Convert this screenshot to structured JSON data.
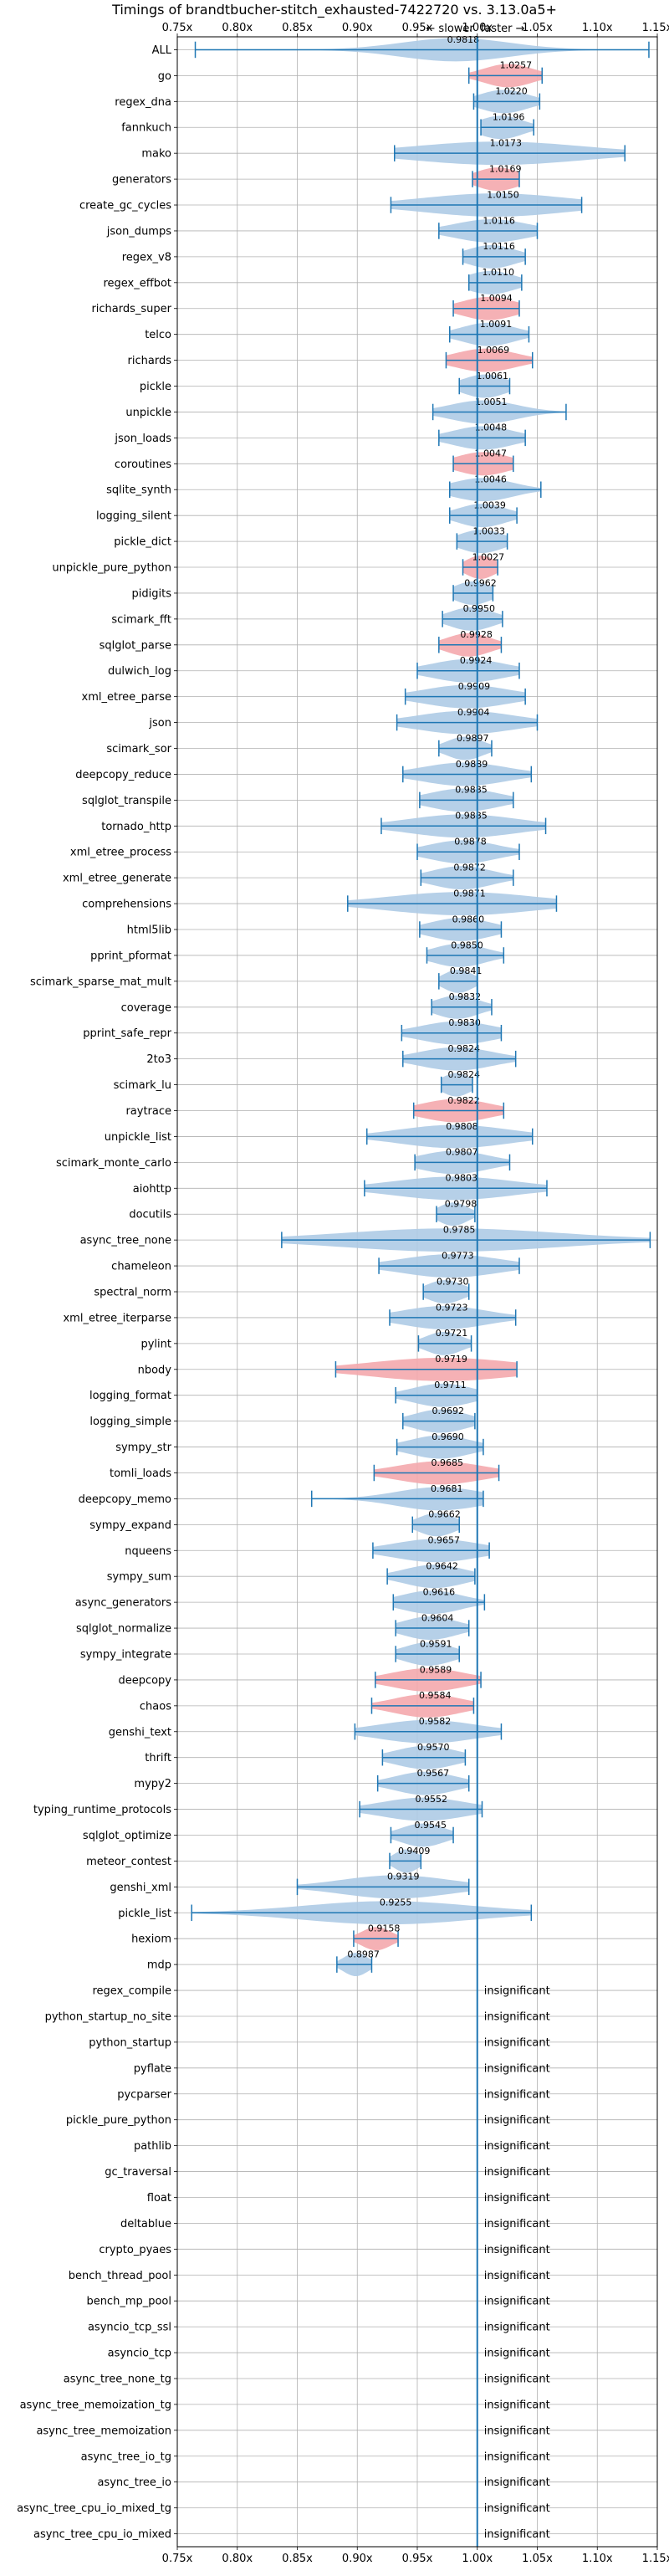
{
  "chart_data": {
    "type": "violin",
    "title": "Timings of brandtbucher-stitch_exhausted-7422720 vs. 3.13.0a5+",
    "direction_labels": {
      "slower": "← slower",
      "faster": "faster →"
    },
    "xlim": [
      0.75,
      1.15
    ],
    "xticks": [
      "0.75x",
      "0.80x",
      "0.85x",
      "0.90x",
      "0.95x",
      "1.00x",
      "1.05x",
      "1.10x",
      "1.15x"
    ],
    "reference_line": 1.0,
    "grid": true,
    "colors": {
      "normal": "#aecbe6",
      "highlight": "#f4a8ad",
      "line": "#1f77b4"
    },
    "insignificant_text": "insignificant",
    "benchmarks": [
      {
        "name": "ALL",
        "mean": "0.9818",
        "v": 0.9818,
        "lo": 0.765,
        "hi": 1.143,
        "w": 0.045,
        "hl": false
      },
      {
        "name": "go",
        "mean": "1.0257",
        "v": 1.0257,
        "lo": 0.993,
        "hi": 1.054,
        "w": 0.02,
        "hl": true
      },
      {
        "name": "regex_dna",
        "mean": "1.0220",
        "v": 1.022,
        "lo": 0.997,
        "hi": 1.052,
        "w": 0.02,
        "hl": false
      },
      {
        "name": "fannkuch",
        "mean": "1.0196",
        "v": 1.0196,
        "lo": 1.003,
        "hi": 1.047,
        "w": 0.018,
        "hl": false
      },
      {
        "name": "mako",
        "mean": "1.0173",
        "v": 1.0173,
        "lo": 0.931,
        "hi": 1.123,
        "w": 0.07,
        "hl": false
      },
      {
        "name": "generators",
        "mean": "1.0169",
        "v": 1.0169,
        "lo": 0.996,
        "hi": 1.035,
        "w": 0.018,
        "hl": true
      },
      {
        "name": "create_gc_cycles",
        "mean": "1.0150",
        "v": 1.015,
        "lo": 0.928,
        "hi": 1.087,
        "w": 0.06,
        "hl": false
      },
      {
        "name": "json_dumps",
        "mean": "1.0116",
        "v": 1.0116,
        "lo": 0.968,
        "hi": 1.05,
        "w": 0.03,
        "hl": false
      },
      {
        "name": "regex_v8",
        "mean": "1.0116",
        "v": 1.0116,
        "lo": 0.988,
        "hi": 1.04,
        "w": 0.02,
        "hl": false
      },
      {
        "name": "regex_effbot",
        "mean": "1.0110",
        "v": 1.011,
        "lo": 0.993,
        "hi": 1.037,
        "w": 0.02,
        "hl": false
      },
      {
        "name": "richards_super",
        "mean": "1.0094",
        "v": 1.0094,
        "lo": 0.98,
        "hi": 1.035,
        "w": 0.022,
        "hl": true
      },
      {
        "name": "telco",
        "mean": "1.0091",
        "v": 1.0091,
        "lo": 0.977,
        "hi": 1.043,
        "w": 0.022,
        "hl": false
      },
      {
        "name": "richards",
        "mean": "1.0069",
        "v": 1.0069,
        "lo": 0.974,
        "hi": 1.046,
        "w": 0.025,
        "hl": true
      },
      {
        "name": "pickle",
        "mean": "1.0061",
        "v": 1.0061,
        "lo": 0.985,
        "hi": 1.027,
        "w": 0.018,
        "hl": false
      },
      {
        "name": "unpickle",
        "mean": "1.0051",
        "v": 1.0051,
        "lo": 0.963,
        "hi": 1.074,
        "w": 0.028,
        "hl": false
      },
      {
        "name": "json_loads",
        "mean": "1.0048",
        "v": 1.0048,
        "lo": 0.968,
        "hi": 1.04,
        "w": 0.025,
        "hl": false
      },
      {
        "name": "coroutines",
        "mean": "1.0047",
        "v": 1.0047,
        "lo": 0.98,
        "hi": 1.03,
        "w": 0.022,
        "hl": true
      },
      {
        "name": "sqlite_synth",
        "mean": "1.0046",
        "v": 1.0046,
        "lo": 0.977,
        "hi": 1.053,
        "w": 0.025,
        "hl": false
      },
      {
        "name": "logging_silent",
        "mean": "1.0039",
        "v": 1.0039,
        "lo": 0.977,
        "hi": 1.033,
        "w": 0.02,
        "hl": false
      },
      {
        "name": "pickle_dict",
        "mean": "1.0033",
        "v": 1.0033,
        "lo": 0.983,
        "hi": 1.025,
        "w": 0.018,
        "hl": false
      },
      {
        "name": "unpickle_pure_python",
        "mean": "1.0027",
        "v": 1.0027,
        "lo": 0.988,
        "hi": 1.017,
        "w": 0.012,
        "hl": true
      },
      {
        "name": "pidigits",
        "mean": "0.9962",
        "v": 0.9962,
        "lo": 0.98,
        "hi": 1.013,
        "w": 0.015,
        "hl": false
      },
      {
        "name": "scimark_fft",
        "mean": "0.9950",
        "v": 0.995,
        "lo": 0.971,
        "hi": 1.021,
        "w": 0.018,
        "hl": false
      },
      {
        "name": "sqlglot_parse",
        "mean": "0.9928",
        "v": 0.9928,
        "lo": 0.968,
        "hi": 1.02,
        "w": 0.018,
        "hl": true
      },
      {
        "name": "dulwich_log",
        "mean": "0.9924",
        "v": 0.9924,
        "lo": 0.95,
        "hi": 1.035,
        "w": 0.03,
        "hl": false
      },
      {
        "name": "xml_etree_parse",
        "mean": "0.9909",
        "v": 0.9909,
        "lo": 0.94,
        "hi": 1.04,
        "w": 0.035,
        "hl": false
      },
      {
        "name": "json",
        "mean": "0.9904",
        "v": 0.9904,
        "lo": 0.933,
        "hi": 1.05,
        "w": 0.04,
        "hl": false
      },
      {
        "name": "scimark_sor",
        "mean": "0.9897",
        "v": 0.9897,
        "lo": 0.968,
        "hi": 1.012,
        "w": 0.015,
        "hl": false
      },
      {
        "name": "deepcopy_reduce",
        "mean": "0.9889",
        "v": 0.9889,
        "lo": 0.938,
        "hi": 1.045,
        "w": 0.035,
        "hl": false
      },
      {
        "name": "sqlglot_transpile",
        "mean": "0.9885",
        "v": 0.9885,
        "lo": 0.952,
        "hi": 1.03,
        "w": 0.028,
        "hl": false
      },
      {
        "name": "tornado_http",
        "mean": "0.9885",
        "v": 0.9885,
        "lo": 0.92,
        "hi": 1.057,
        "w": 0.045,
        "hl": false
      },
      {
        "name": "xml_etree_process",
        "mean": "0.9878",
        "v": 0.9878,
        "lo": 0.95,
        "hi": 1.035,
        "w": 0.028,
        "hl": false
      },
      {
        "name": "xml_etree_generate",
        "mean": "0.9872",
        "v": 0.9872,
        "lo": 0.953,
        "hi": 1.03,
        "w": 0.025,
        "hl": false
      },
      {
        "name": "comprehensions",
        "mean": "0.9871",
        "v": 0.9871,
        "lo": 0.892,
        "hi": 1.066,
        "w": 0.06,
        "hl": false
      },
      {
        "name": "html5lib",
        "mean": "0.9860",
        "v": 0.986,
        "lo": 0.952,
        "hi": 1.02,
        "w": 0.025,
        "hl": false
      },
      {
        "name": "pprint_pformat",
        "mean": "0.9850",
        "v": 0.985,
        "lo": 0.958,
        "hi": 1.022,
        "w": 0.022,
        "hl": false
      },
      {
        "name": "scimark_sparse_mat_mult",
        "mean": "0.9841",
        "v": 0.9841,
        "lo": 0.968,
        "hi": 1.0,
        "w": 0.012,
        "hl": false
      },
      {
        "name": "coverage",
        "mean": "0.9832",
        "v": 0.9832,
        "lo": 0.962,
        "hi": 1.012,
        "w": 0.018,
        "hl": false
      },
      {
        "name": "pprint_safe_repr",
        "mean": "0.9830",
        "v": 0.983,
        "lo": 0.937,
        "hi": 1.02,
        "w": 0.03,
        "hl": false
      },
      {
        "name": "2to3",
        "mean": "0.9824",
        "v": 0.9824,
        "lo": 0.938,
        "hi": 1.032,
        "w": 0.03,
        "hl": false
      },
      {
        "name": "scimark_lu",
        "mean": "0.9824",
        "v": 0.9824,
        "lo": 0.97,
        "hi": 0.996,
        "w": 0.012,
        "hl": false
      },
      {
        "name": "raytrace",
        "mean": "0.9822",
        "v": 0.9822,
        "lo": 0.947,
        "hi": 1.022,
        "w": 0.028,
        "hl": true
      },
      {
        "name": "unpickle_list",
        "mean": "0.9808",
        "v": 0.9808,
        "lo": 0.908,
        "hi": 1.046,
        "w": 0.045,
        "hl": false
      },
      {
        "name": "scimark_monte_carlo",
        "mean": "0.9807",
        "v": 0.9807,
        "lo": 0.948,
        "hi": 1.027,
        "w": 0.028,
        "hl": false
      },
      {
        "name": "aiohttp",
        "mean": "0.9803",
        "v": 0.9803,
        "lo": 0.906,
        "hi": 1.058,
        "w": 0.05,
        "hl": false
      },
      {
        "name": "docutils",
        "mean": "0.9798",
        "v": 0.9798,
        "lo": 0.966,
        "hi": 0.998,
        "w": 0.012,
        "hl": false
      },
      {
        "name": "async_tree_none",
        "mean": "0.9785",
        "v": 0.9785,
        "lo": 0.837,
        "hi": 1.144,
        "w": 0.09,
        "hl": false
      },
      {
        "name": "chameleon",
        "mean": "0.9773",
        "v": 0.9773,
        "lo": 0.918,
        "hi": 1.035,
        "w": 0.04,
        "hl": false
      },
      {
        "name": "spectral_norm",
        "mean": "0.9730",
        "v": 0.973,
        "lo": 0.955,
        "hi": 0.993,
        "w": 0.015,
        "hl": false
      },
      {
        "name": "xml_etree_iterparse",
        "mean": "0.9723",
        "v": 0.9723,
        "lo": 0.927,
        "hi": 1.032,
        "w": 0.035,
        "hl": false
      },
      {
        "name": "pylint",
        "mean": "0.9721",
        "v": 0.9721,
        "lo": 0.951,
        "hi": 0.995,
        "w": 0.015,
        "hl": false
      },
      {
        "name": "nbody",
        "mean": "0.9719",
        "v": 0.9719,
        "lo": 0.882,
        "hi": 1.033,
        "w": 0.06,
        "hl": true
      },
      {
        "name": "logging_format",
        "mean": "0.9711",
        "v": 0.9711,
        "lo": 0.932,
        "hi": 1.0,
        "w": 0.025,
        "hl": false
      },
      {
        "name": "logging_simple",
        "mean": "0.9692",
        "v": 0.9692,
        "lo": 0.938,
        "hi": 0.998,
        "w": 0.022,
        "hl": false
      },
      {
        "name": "sympy_str",
        "mean": "0.9690",
        "v": 0.969,
        "lo": 0.933,
        "hi": 1.005,
        "w": 0.025,
        "hl": false
      },
      {
        "name": "tomli_loads",
        "mean": "0.9685",
        "v": 0.9685,
        "lo": 0.914,
        "hi": 1.018,
        "w": 0.035,
        "hl": true
      },
      {
        "name": "deepcopy_memo",
        "mean": "0.9681",
        "v": 0.9681,
        "lo": 0.862,
        "hi": 1.005,
        "w": 0.035,
        "hl": false
      },
      {
        "name": "sympy_expand",
        "mean": "0.9662",
        "v": 0.9662,
        "lo": 0.946,
        "hi": 0.985,
        "w": 0.015,
        "hl": false
      },
      {
        "name": "nqueens",
        "mean": "0.9657",
        "v": 0.9657,
        "lo": 0.913,
        "hi": 1.01,
        "w": 0.035,
        "hl": false
      },
      {
        "name": "sympy_sum",
        "mean": "0.9642",
        "v": 0.9642,
        "lo": 0.925,
        "hi": 0.998,
        "w": 0.025,
        "hl": false
      },
      {
        "name": "async_generators",
        "mean": "0.9616",
        "v": 0.9616,
        "lo": 0.93,
        "hi": 1.006,
        "w": 0.025,
        "hl": false
      },
      {
        "name": "sqlglot_normalize",
        "mean": "0.9604",
        "v": 0.9604,
        "lo": 0.932,
        "hi": 0.993,
        "w": 0.022,
        "hl": false
      },
      {
        "name": "sympy_integrate",
        "mean": "0.9591",
        "v": 0.9591,
        "lo": 0.932,
        "hi": 0.985,
        "w": 0.02,
        "hl": false
      },
      {
        "name": "deepcopy",
        "mean": "0.9589",
        "v": 0.9589,
        "lo": 0.915,
        "hi": 1.003,
        "w": 0.03,
        "hl": true
      },
      {
        "name": "chaos",
        "mean": "0.9584",
        "v": 0.9584,
        "lo": 0.912,
        "hi": 0.997,
        "w": 0.028,
        "hl": true
      },
      {
        "name": "genshi_text",
        "mean": "0.9582",
        "v": 0.9582,
        "lo": 0.898,
        "hi": 1.02,
        "w": 0.04,
        "hl": false
      },
      {
        "name": "thrift",
        "mean": "0.9570",
        "v": 0.957,
        "lo": 0.921,
        "hi": 0.99,
        "w": 0.025,
        "hl": false
      },
      {
        "name": "mypy2",
        "mean": "0.9567",
        "v": 0.9567,
        "lo": 0.917,
        "hi": 0.993,
        "w": 0.025,
        "hl": false
      },
      {
        "name": "typing_runtime_protocols",
        "mean": "0.9552",
        "v": 0.9552,
        "lo": 0.902,
        "hi": 1.004,
        "w": 0.035,
        "hl": false
      },
      {
        "name": "sqlglot_optimize",
        "mean": "0.9545",
        "v": 0.9545,
        "lo": 0.928,
        "hi": 0.98,
        "w": 0.018,
        "hl": false
      },
      {
        "name": "meteor_contest",
        "mean": "0.9409",
        "v": 0.9409,
        "lo": 0.927,
        "hi": 0.953,
        "w": 0.01,
        "hl": false
      },
      {
        "name": "genshi_xml",
        "mean": "0.9319",
        "v": 0.9319,
        "lo": 0.85,
        "hi": 0.993,
        "w": 0.045,
        "hl": false
      },
      {
        "name": "pickle_list",
        "mean": "0.9255",
        "v": 0.9255,
        "lo": 0.762,
        "hi": 1.045,
        "w": 0.07,
        "hl": false
      },
      {
        "name": "hexiom",
        "mean": "0.9158",
        "v": 0.9158,
        "lo": 0.897,
        "hi": 0.934,
        "w": 0.012,
        "hl": true
      },
      {
        "name": "mdp",
        "mean": "0.8987",
        "v": 0.8987,
        "lo": 0.883,
        "hi": 0.912,
        "w": 0.01,
        "hl": false
      },
      {
        "name": "regex_compile",
        "insig": true
      },
      {
        "name": "python_startup_no_site",
        "insig": true
      },
      {
        "name": "python_startup",
        "insig": true
      },
      {
        "name": "pyflate",
        "insig": true
      },
      {
        "name": "pycparser",
        "insig": true
      },
      {
        "name": "pickle_pure_python",
        "insig": true
      },
      {
        "name": "pathlib",
        "insig": true
      },
      {
        "name": "gc_traversal",
        "insig": true
      },
      {
        "name": "float",
        "insig": true
      },
      {
        "name": "deltablue",
        "insig": true
      },
      {
        "name": "crypto_pyaes",
        "insig": true
      },
      {
        "name": "bench_thread_pool",
        "insig": true
      },
      {
        "name": "bench_mp_pool",
        "insig": true
      },
      {
        "name": "asyncio_tcp_ssl",
        "insig": true
      },
      {
        "name": "asyncio_tcp",
        "insig": true
      },
      {
        "name": "async_tree_none_tg",
        "insig": true
      },
      {
        "name": "async_tree_memoization_tg",
        "insig": true
      },
      {
        "name": "async_tree_memoization",
        "insig": true
      },
      {
        "name": "async_tree_io_tg",
        "insig": true
      },
      {
        "name": "async_tree_io",
        "insig": true
      },
      {
        "name": "async_tree_cpu_io_mixed_tg",
        "insig": true
      },
      {
        "name": "async_tree_cpu_io_mixed",
        "insig": true
      }
    ]
  }
}
